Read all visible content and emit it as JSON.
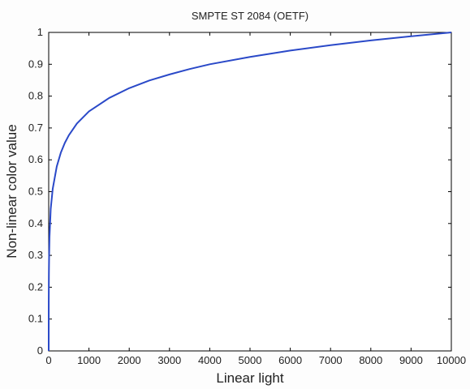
{
  "chart_data": {
    "type": "line",
    "title": "SMPTE ST 2084 (OETF)",
    "xlabel": "Linear light",
    "ylabel": "Non-linear color value",
    "xlim": [
      0,
      10000
    ],
    "ylim": [
      0,
      1
    ],
    "x_ticks": [
      0,
      1000,
      2000,
      3000,
      4000,
      5000,
      6000,
      7000,
      8000,
      9000,
      10000
    ],
    "x_tick_labels": [
      "0",
      "1000",
      "2000",
      "3000",
      "4000",
      "5000",
      "6000",
      "7000",
      "8000",
      "9000",
      "10000"
    ],
    "y_ticks": [
      0,
      0.1,
      0.2,
      0.3,
      0.4,
      0.5,
      0.6,
      0.7,
      0.8,
      0.9,
      1
    ],
    "y_tick_labels": [
      "0",
      "0.1",
      "0.2",
      "0.3",
      "0.4",
      "0.5",
      "0.6",
      "0.7",
      "0.8",
      "0.9",
      "1"
    ],
    "grid": false,
    "series": [
      {
        "color": "#2a49c8",
        "x": [
          0,
          1,
          5,
          10,
          20,
          50,
          100,
          200,
          300,
          400,
          500,
          700,
          1000,
          1500,
          2000,
          2500,
          3000,
          3500,
          4000,
          5000,
          6000,
          7000,
          8000,
          9000,
          10000
        ],
        "y": [
          0,
          0.151,
          0.244,
          0.298,
          0.358,
          0.446,
          0.509,
          0.579,
          0.622,
          0.653,
          0.677,
          0.714,
          0.752,
          0.794,
          0.825,
          0.849,
          0.868,
          0.885,
          0.9,
          0.923,
          0.943,
          0.96,
          0.975,
          0.988,
          1
        ]
      }
    ]
  }
}
